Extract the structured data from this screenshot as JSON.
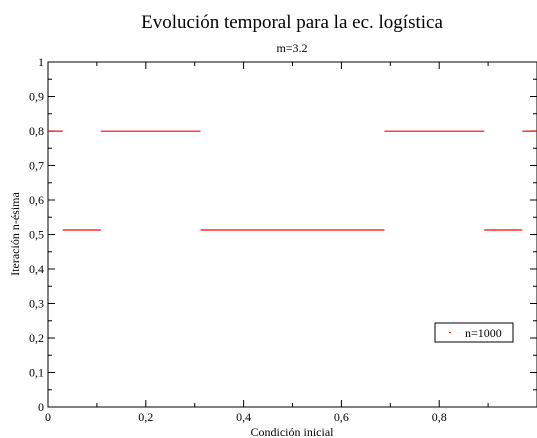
{
  "chart_data": {
    "type": "scatter",
    "title": "Evolución temporal para la ec. logística",
    "subtitle": "m=3.2",
    "xlabel": "Condición inicial",
    "ylabel": "Iteración n-ésima",
    "xlim": [
      0,
      1
    ],
    "ylim": [
      0,
      1
    ],
    "x_ticks": [
      "0",
      "0,2",
      "0,4",
      "0,6",
      "0,8"
    ],
    "y_ticks": [
      "0",
      "0,1",
      "0,2",
      "0,3",
      "0,4",
      "0,5",
      "0,6",
      "0,7",
      "0,8",
      "0,9",
      "1"
    ],
    "x_minor_step": 0.1,
    "y_minor_step": 0.05,
    "grid": false,
    "legend_position": "bottom-right",
    "series": [
      {
        "name": "n=1000",
        "color": "#ff0000",
        "segments": [
          {
            "x": [
              0.0,
              0.03
            ],
            "y": 0.7995
          },
          {
            "x": [
              0.03,
              0.108
            ],
            "y": 0.513
          },
          {
            "x": [
              0.108,
              0.312
            ],
            "y": 0.7995
          },
          {
            "x": [
              0.312,
              0.688
            ],
            "y": 0.513
          },
          {
            "x": [
              0.688,
              0.892
            ],
            "y": 0.7995
          },
          {
            "x": [
              0.892,
              0.97
            ],
            "y": 0.513
          },
          {
            "x": [
              0.97,
              1.0
            ],
            "y": 0.7995
          }
        ]
      }
    ]
  }
}
